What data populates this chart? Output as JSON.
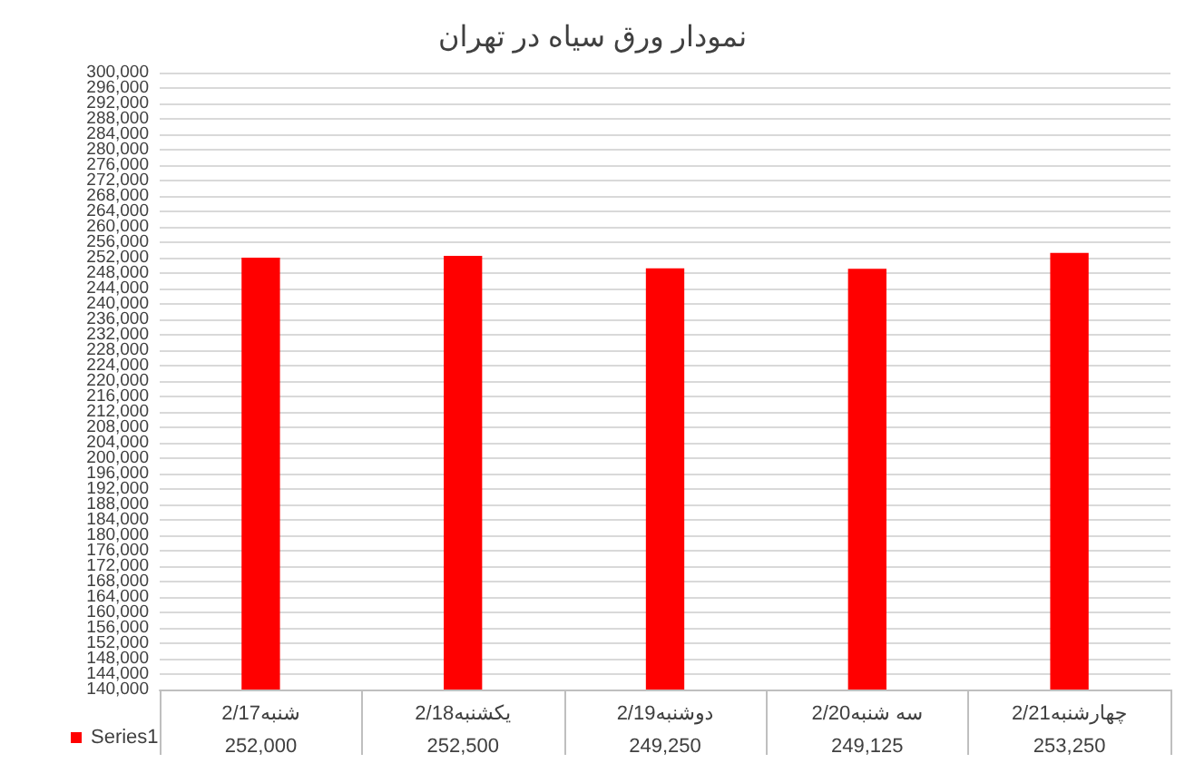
{
  "chart_data": {
    "type": "bar",
    "title": "نمودار ورق سیاه در تهران",
    "categories": [
      "شنبه2/17",
      "یکشنبه2/18",
      "دوشنبه2/19",
      "سه شنبه2/20",
      "چهارشنبه2/21"
    ],
    "series": [
      {
        "name": "Series1",
        "color": "#ff0000",
        "values": [
          252000,
          252500,
          249250,
          249125,
          253250
        ],
        "value_labels": [
          "252,000",
          "252,500",
          "249,250",
          "249,125",
          "253,250"
        ]
      }
    ],
    "ylim": [
      140000,
      300000
    ],
    "yticks": [
      {
        "value": 140000,
        "label": "140,000"
      },
      {
        "value": 144000,
        "label": "144,000"
      },
      {
        "value": 148000,
        "label": "148,000"
      },
      {
        "value": 152000,
        "label": "152,000"
      },
      {
        "value": 156000,
        "label": "156,000"
      },
      {
        "value": 160000,
        "label": "160,000"
      },
      {
        "value": 164000,
        "label": "164,000"
      },
      {
        "value": 168000,
        "label": "168,000"
      },
      {
        "value": 172000,
        "label": "172,000"
      },
      {
        "value": 176000,
        "label": "176,000"
      },
      {
        "value": 180000,
        "label": "180,000"
      },
      {
        "value": 184000,
        "label": "184,000"
      },
      {
        "value": 188000,
        "label": "188,000"
      },
      {
        "value": 192000,
        "label": "192,000"
      },
      {
        "value": 196000,
        "label": "196,000"
      },
      {
        "value": 200000,
        "label": "200,000"
      },
      {
        "value": 204000,
        "label": "204,000"
      },
      {
        "value": 208000,
        "label": "208,000"
      },
      {
        "value": 212000,
        "label": "212,000"
      },
      {
        "value": 216000,
        "label": "216,000"
      },
      {
        "value": 220000,
        "label": "220,000"
      },
      {
        "value": 224000,
        "label": "224,000"
      },
      {
        "value": 228000,
        "label": "228,000"
      },
      {
        "value": 232000,
        "label": "232,000"
      },
      {
        "value": 236000,
        "label": "236,000"
      },
      {
        "value": 240000,
        "label": "240,000"
      },
      {
        "value": 244000,
        "label": "244,000"
      },
      {
        "value": 248000,
        "label": "248,000"
      },
      {
        "value": 252000,
        "label": "252,000"
      },
      {
        "value": 256000,
        "label": "256,000"
      },
      {
        "value": 260000,
        "label": "260,000"
      },
      {
        "value": 264000,
        "label": "264,000"
      },
      {
        "value": 268000,
        "label": "268,000"
      },
      {
        "value": 272000,
        "label": "272,000"
      },
      {
        "value": 276000,
        "label": "276,000"
      },
      {
        "value": 280000,
        "label": "280,000"
      },
      {
        "value": 284000,
        "label": "284,000"
      },
      {
        "value": 288000,
        "label": "288,000"
      },
      {
        "value": 292000,
        "label": "292,000"
      },
      {
        "value": 296000,
        "label": "296,000"
      },
      {
        "value": 300000,
        "label": "300,000"
      }
    ],
    "grid": "y",
    "legend": "bottom left"
  }
}
